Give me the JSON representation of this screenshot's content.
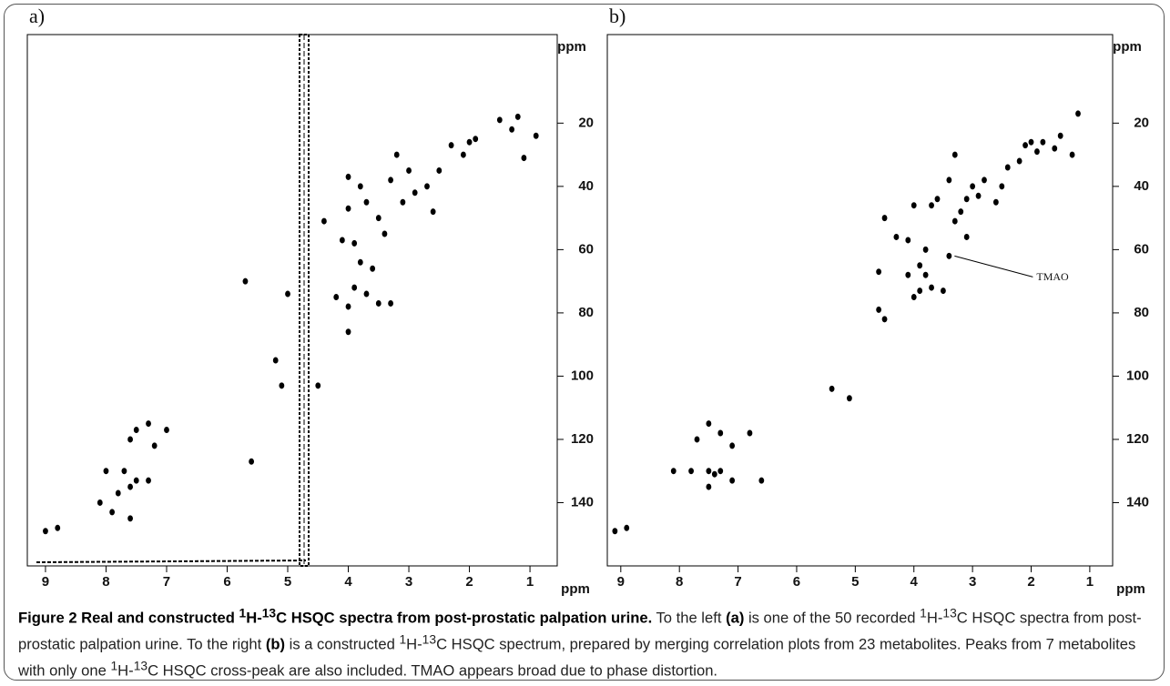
{
  "chart_data": [
    {
      "type": "scatter",
      "panel_label": "a)",
      "x_label": "ppm",
      "y_label": "ppm",
      "color": "#000000",
      "xlim": [
        9.3,
        0.55
      ],
      "ylim": [
        160,
        -8
      ],
      "xticks": [
        9,
        8,
        7,
        6,
        5,
        4,
        3,
        2,
        1
      ],
      "yticks": [
        20,
        40,
        60,
        80,
        100,
        120,
        140
      ],
      "x": [
        1.2,
        1.3,
        1.5,
        1.9,
        2.0,
        2.1,
        2.3,
        2.5,
        2.6,
        2.7,
        2.9,
        3.0,
        3.1,
        3.2,
        3.3,
        3.4,
        3.5,
        3.7,
        3.8,
        4.0,
        4.0,
        4.1,
        3.9,
        3.8,
        3.6,
        3.9,
        3.7,
        3.5,
        4.0,
        3.3,
        4.0,
        4.4,
        5.2,
        5.1,
        4.5,
        5.7,
        5.0,
        7.0,
        7.2,
        7.3,
        7.5,
        7.6,
        7.7,
        7.5,
        7.3,
        7.6,
        7.8,
        8.0,
        8.1,
        7.9,
        7.6,
        8.8,
        9.0,
        5.6,
        0.9,
        1.1,
        4.2
      ],
      "y": [
        18,
        22,
        19,
        25,
        26,
        30,
        27,
        35,
        48,
        40,
        42,
        35,
        45,
        30,
        38,
        55,
        50,
        45,
        40,
        37,
        47,
        57,
        58,
        64,
        66,
        72,
        74,
        77,
        78,
        77,
        86,
        51,
        95,
        103,
        103,
        70,
        74,
        117,
        122,
        115,
        117,
        120,
        130,
        133,
        133,
        135,
        137,
        130,
        140,
        143,
        145,
        148,
        149,
        127,
        24,
        31,
        75
      ]
    },
    {
      "type": "scatter",
      "panel_label": "b)",
      "x_label": "ppm",
      "y_label": "ppm",
      "color": "#000000",
      "xlim": [
        9.23,
        0.61
      ],
      "ylim": [
        160,
        -8
      ],
      "xticks": [
        9,
        8,
        7,
        6,
        5,
        4,
        3,
        2,
        1
      ],
      "yticks": [
        20,
        40,
        60,
        80,
        100,
        120,
        140
      ],
      "x": [
        1.2,
        1.3,
        1.5,
        1.6,
        1.8,
        1.9,
        2.0,
        2.1,
        2.2,
        2.4,
        2.5,
        2.6,
        2.8,
        2.9,
        3.0,
        3.1,
        3.2,
        3.3,
        3.4,
        3.3,
        3.1,
        3.6,
        3.7,
        4.0,
        4.1,
        4.3,
        4.5,
        3.8,
        3.9,
        3.8,
        3.7,
        3.9,
        3.5,
        4.0,
        4.1,
        4.6,
        4.6,
        4.5,
        3.4,
        5.4,
        5.1,
        7.5,
        7.3,
        6.8,
        7.7,
        7.1,
        8.1,
        7.8,
        7.5,
        7.4,
        7.3,
        7.1,
        6.6,
        7.5,
        9.1,
        8.9
      ],
      "y": [
        17,
        30,
        24,
        28,
        26,
        29,
        26,
        27,
        32,
        34,
        40,
        45,
        38,
        43,
        40,
        44,
        48,
        30,
        38,
        51,
        56,
        44,
        46,
        46,
        57,
        56,
        50,
        60,
        65,
        68,
        72,
        73,
        73,
        75,
        68,
        67,
        79,
        82,
        62,
        104,
        107,
        115,
        118,
        118,
        120,
        122,
        130,
        130,
        130,
        131,
        130,
        133,
        133,
        135,
        149,
        148
      ],
      "annotation": {
        "text": "TMAO",
        "x": 3.4,
        "y": 62
      }
    }
  ],
  "caption": [
    [
      "Figure 2 Real and constructed ",
      "b"
    ],
    [
      "1",
      "bsup"
    ],
    [
      "H-",
      "b"
    ],
    [
      "13",
      "bsup"
    ],
    [
      "C HSQC spectra from post-prostatic palpation urine.",
      "b"
    ],
    [
      " To the left ",
      ""
    ],
    [
      "(a)",
      "b"
    ],
    [
      " is one of the 50 recorded ",
      ""
    ],
    [
      "1",
      "sup"
    ],
    [
      "H-",
      ""
    ],
    [
      "13",
      "sup"
    ],
    [
      "C HSQC spectra from post-prostatic palpation urine. To the right ",
      ""
    ],
    [
      "(b)",
      "b"
    ],
    [
      " is a constructed ",
      ""
    ],
    [
      "1",
      "sup"
    ],
    [
      "H-",
      ""
    ],
    [
      "13",
      "sup"
    ],
    [
      "C HSQC spectrum, prepared by merging correlation plots from 23 metabolites. Peaks from 7 metabolites with only one ",
      ""
    ],
    [
      "1",
      "sup"
    ],
    [
      "H-",
      ""
    ],
    [
      "13",
      "sup"
    ],
    [
      "C HSQC cross-peak are also included. TMAO appears broad due to phase distortion.",
      ""
    ]
  ]
}
